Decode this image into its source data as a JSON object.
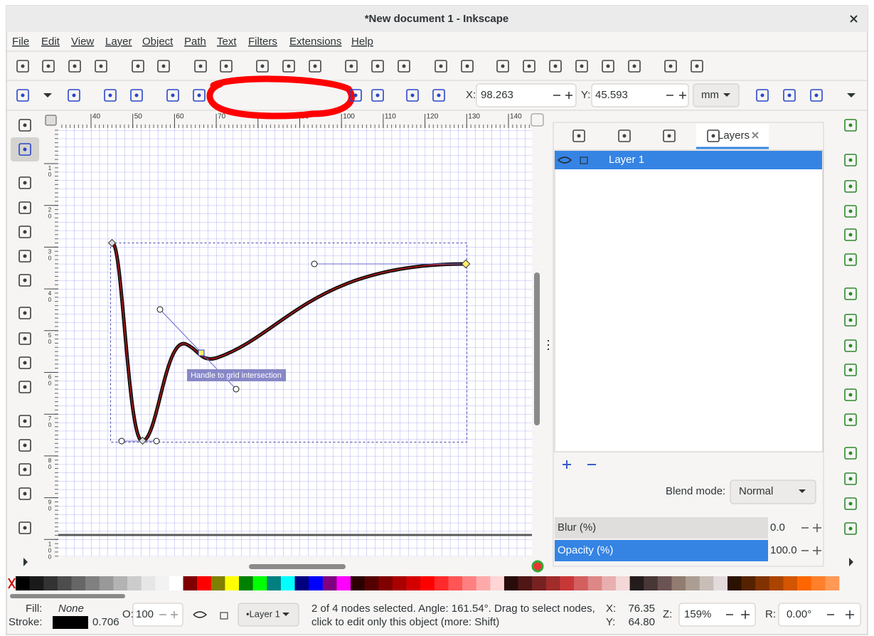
{
  "window": {
    "title": "*New document 1 - Inkscape"
  },
  "menu": [
    "File",
    "Edit",
    "View",
    "Layer",
    "Object",
    "Path",
    "Text",
    "Filters",
    "Extensions",
    "Help"
  ],
  "tool_controls": {
    "x_label": "X:",
    "x_value": "98.263",
    "y_label": "Y:",
    "y_value": "45.593",
    "unit": "mm"
  },
  "rulers": {
    "top": [
      40,
      50,
      60,
      70,
      80,
      90,
      100,
      110,
      120,
      130,
      140
    ],
    "left": [
      10,
      20,
      30,
      40,
      50,
      60,
      70,
      80,
      90,
      100
    ]
  },
  "canvas": {
    "tooltip": "Handle to grid intersection"
  },
  "layers_panel": {
    "tab": "Layers",
    "layers": [
      "Layer 1"
    ],
    "blend_label": "Blend mode:",
    "blend_value": "Normal",
    "blur_label": "Blur (%)",
    "blur_value": "0.0",
    "opacity_label": "Opacity (%)",
    "opacity_value": "100.0"
  },
  "palette": [
    "#000000",
    "#1a1a1a",
    "#333333",
    "#4d4d4d",
    "#666666",
    "#808080",
    "#999999",
    "#b3b3b3",
    "#cccccc",
    "#e6e6e6",
    "#f2f2f2",
    "#ffffff",
    "#800000",
    "#ff0000",
    "#808000",
    "#ffff00",
    "#008000",
    "#00ff00",
    "#008080",
    "#00ffff",
    "#000080",
    "#0000ff",
    "#800080",
    "#ff00ff",
    "#2b0000",
    "#550000",
    "#800000",
    "#aa0000",
    "#d40000",
    "#ff0000",
    "#ff2a2a",
    "#ff5555",
    "#ff8080",
    "#ffaaaa",
    "#ffd5d5",
    "#280b0b",
    "#501616",
    "#782121",
    "#a02c2c",
    "#c83737",
    "#d35f5f",
    "#de8787",
    "#e9afaf",
    "#f4d7d7",
    "#241c1c",
    "#483737",
    "#6c5353",
    "#917c6f",
    "#ac9d93",
    "#c8beb7",
    "#e3dbdb",
    "#2b1100",
    "#552200",
    "#803300",
    "#aa4400",
    "#d45500",
    "#ff6600",
    "#ff7f2a",
    "#ff9955"
  ],
  "status_bar": {
    "fill_label": "Fill:",
    "fill_value": "None",
    "stroke_label": "Stroke:",
    "stroke_width": "0.706",
    "opacity_label": "O:",
    "opacity_value": "100",
    "layer": "•Layer 1",
    "message": [
      "2 of 4 nodes selected. Angle: 161.54°. Drag to select nodes,",
      "click to edit only this object (more: Shift)"
    ],
    "x_label": "X:",
    "x_value": "76.35",
    "y_label": "Y:",
    "y_value": "64.80",
    "zoom_label": "Z:",
    "zoom_value": "159%",
    "rotation_label": "R:",
    "rotation_value": "0.00°"
  }
}
